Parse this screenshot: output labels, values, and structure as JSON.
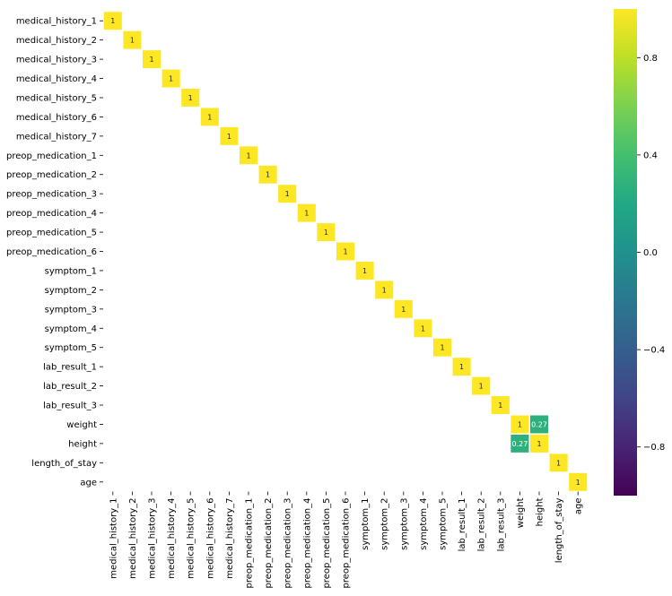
{
  "chart_data": {
    "type": "heatmap",
    "title": "",
    "xlabel": "",
    "ylabel": "",
    "colormap": "viridis",
    "vmin": -1,
    "vmax": 1,
    "labels": [
      "medical_history_1",
      "medical_history_2",
      "medical_history_3",
      "medical_history_4",
      "medical_history_5",
      "medical_history_6",
      "medical_history_7",
      "preop_medication_1",
      "preop_medication_2",
      "preop_medication_3",
      "preop_medication_4",
      "preop_medication_5",
      "preop_medication_6",
      "symptom_1",
      "symptom_2",
      "symptom_3",
      "symptom_4",
      "symptom_5",
      "lab_result_1",
      "lab_result_2",
      "lab_result_3",
      "weight",
      "height",
      "length_of_stay",
      "age"
    ],
    "cells": [
      {
        "row": 0,
        "col": 0,
        "value": 1,
        "label": "1"
      },
      {
        "row": 1,
        "col": 1,
        "value": 1,
        "label": "1"
      },
      {
        "row": 2,
        "col": 2,
        "value": 1,
        "label": "1"
      },
      {
        "row": 3,
        "col": 3,
        "value": 1,
        "label": "1"
      },
      {
        "row": 4,
        "col": 4,
        "value": 1,
        "label": "1"
      },
      {
        "row": 5,
        "col": 5,
        "value": 1,
        "label": "1"
      },
      {
        "row": 6,
        "col": 6,
        "value": 1,
        "label": "1"
      },
      {
        "row": 7,
        "col": 7,
        "value": 1,
        "label": "1"
      },
      {
        "row": 8,
        "col": 8,
        "value": 1,
        "label": "1"
      },
      {
        "row": 9,
        "col": 9,
        "value": 1,
        "label": "1"
      },
      {
        "row": 10,
        "col": 10,
        "value": 1,
        "label": "1"
      },
      {
        "row": 11,
        "col": 11,
        "value": 1,
        "label": "1"
      },
      {
        "row": 12,
        "col": 12,
        "value": 1,
        "label": "1"
      },
      {
        "row": 13,
        "col": 13,
        "value": 1,
        "label": "1"
      },
      {
        "row": 14,
        "col": 14,
        "value": 1,
        "label": "1"
      },
      {
        "row": 15,
        "col": 15,
        "value": 1,
        "label": "1"
      },
      {
        "row": 16,
        "col": 16,
        "value": 1,
        "label": "1"
      },
      {
        "row": 17,
        "col": 17,
        "value": 1,
        "label": "1"
      },
      {
        "row": 18,
        "col": 18,
        "value": 1,
        "label": "1"
      },
      {
        "row": 19,
        "col": 19,
        "value": 1,
        "label": "1"
      },
      {
        "row": 20,
        "col": 20,
        "value": 1,
        "label": "1"
      },
      {
        "row": 21,
        "col": 21,
        "value": 1,
        "label": "1"
      },
      {
        "row": 21,
        "col": 22,
        "value": 0.27,
        "label": "0.27"
      },
      {
        "row": 22,
        "col": 21,
        "value": 0.27,
        "label": "0.27"
      },
      {
        "row": 22,
        "col": 22,
        "value": 1,
        "label": "1"
      },
      {
        "row": 23,
        "col": 23,
        "value": 1,
        "label": "1"
      },
      {
        "row": 24,
        "col": 24,
        "value": 1,
        "label": "1"
      }
    ],
    "colorbar": {
      "ticks": [
        0.8,
        0.4,
        0.0,
        -0.4,
        -0.8
      ],
      "tick_labels": [
        "0.8",
        "0.4",
        "0.0",
        "−0.4",
        "−0.8"
      ]
    }
  }
}
